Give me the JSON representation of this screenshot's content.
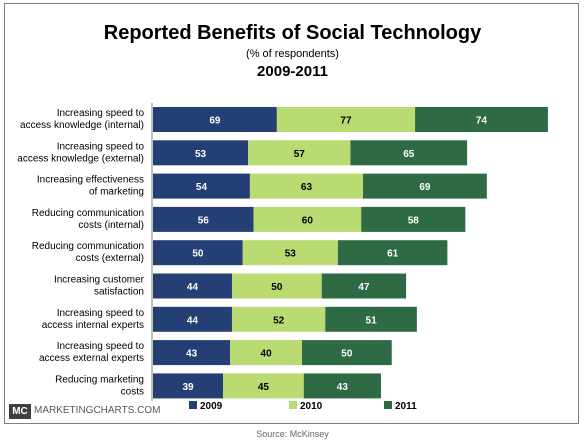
{
  "header": {
    "title": "Reported Benefits of Social Technology",
    "subtitle": "(% of respondents)",
    "years": "2009-2011"
  },
  "footer": {
    "logo": "MC",
    "site": "MARKETINGCHARTS.COM",
    "source": "Source: McKinsey"
  },
  "chart_data": {
    "type": "bar",
    "orientation": "horizontal",
    "stacked": true,
    "categories": [
      [
        "Increasing speed to",
        "access knowledge (internal)"
      ],
      [
        "Increasing speed to",
        "access knowledge (external)"
      ],
      [
        "Increasing effectiveness",
        "of marketing"
      ],
      [
        "Reducing communication",
        "costs (internal)"
      ],
      [
        "Reducing communication",
        "costs (external)"
      ],
      [
        "Increasing customer",
        "satisfaction"
      ],
      [
        "Increasing speed to",
        "access internal experts"
      ],
      [
        "Increasing speed to",
        "access external experts"
      ],
      [
        "Reducing marketing",
        "costs"
      ]
    ],
    "series": [
      {
        "name": "2009",
        "color": "#243f73",
        "label_color": "#ffffff",
        "values": [
          69,
          53,
          54,
          56,
          50,
          44,
          44,
          43,
          39
        ]
      },
      {
        "name": "2010",
        "color": "#b9db72",
        "label_color": "#000000",
        "values": [
          77,
          57,
          63,
          60,
          53,
          50,
          52,
          40,
          45
        ]
      },
      {
        "name": "2011",
        "color": "#2e6b45",
        "label_color": "#ffffff",
        "values": [
          74,
          65,
          69,
          58,
          61,
          47,
          51,
          50,
          43
        ]
      }
    ],
    "legend_position": "bottom",
    "grid": false
  }
}
